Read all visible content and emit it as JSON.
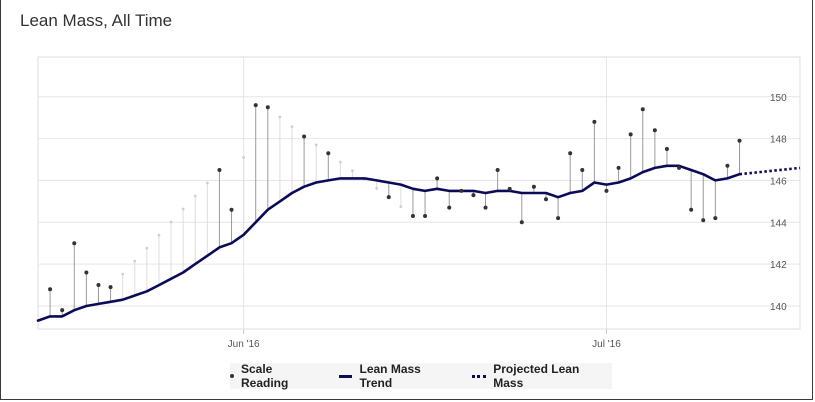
{
  "title": "Lean Mass, All Time",
  "chart_data": {
    "type": "line",
    "title": "Lean Mass, All Time",
    "xlabel": "",
    "ylabel": "",
    "x_domain": [
      -17,
      46
    ],
    "ylim": [
      138.9,
      151.9
    ],
    "y_ticks": [
      140,
      142,
      144,
      146,
      148,
      150
    ],
    "x_ticks": [
      {
        "x": 0,
        "label": "Jun '16"
      },
      {
        "x": 30,
        "label": "Jul '16"
      }
    ],
    "grid": true,
    "legend": "bottom-center",
    "series": [
      {
        "name": "Scale Reading",
        "kind": "scatter",
        "points": [
          {
            "x": -16,
            "y": 140.8
          },
          {
            "x": -15,
            "y": 139.8
          },
          {
            "x": -14,
            "y": 143.0
          },
          {
            "x": -13,
            "y": 141.6
          },
          {
            "x": -12,
            "y": 141.0
          },
          {
            "x": -11,
            "y": 140.9
          },
          {
            "x": -2,
            "y": 146.5
          },
          {
            "x": -1,
            "y": 144.6
          },
          {
            "x": 1,
            "y": 149.6
          },
          {
            "x": 2,
            "y": 149.5
          },
          {
            "x": 5,
            "y": 148.1
          },
          {
            "x": 7,
            "y": 147.3
          },
          {
            "x": 12,
            "y": 145.2
          },
          {
            "x": 14,
            "y": 144.3
          },
          {
            "x": 15,
            "y": 144.3
          },
          {
            "x": 16,
            "y": 146.1
          },
          {
            "x": 17,
            "y": 144.7
          },
          {
            "x": 18,
            "y": 145.5
          },
          {
            "x": 19,
            "y": 145.3
          },
          {
            "x": 20,
            "y": 144.7
          },
          {
            "x": 21,
            "y": 146.5
          },
          {
            "x": 22,
            "y": 145.6
          },
          {
            "x": 23,
            "y": 144.0
          },
          {
            "x": 24,
            "y": 145.7
          },
          {
            "x": 25,
            "y": 145.1
          },
          {
            "x": 26,
            "y": 144.2
          },
          {
            "x": 27,
            "y": 147.3
          },
          {
            "x": 28,
            "y": 146.5
          },
          {
            "x": 29,
            "y": 148.8
          },
          {
            "x": 30,
            "y": 145.5
          },
          {
            "x": 31,
            "y": 146.6
          },
          {
            "x": 32,
            "y": 148.2
          },
          {
            "x": 33,
            "y": 149.4
          },
          {
            "x": 34,
            "y": 148.4
          },
          {
            "x": 35,
            "y": 147.5
          },
          {
            "x": 36,
            "y": 146.6
          },
          {
            "x": 37,
            "y": 144.6
          },
          {
            "x": 38,
            "y": 144.1
          },
          {
            "x": 39,
            "y": 144.2
          },
          {
            "x": 40,
            "y": 146.7
          },
          {
            "x": 41,
            "y": 147.9
          }
        ]
      },
      {
        "name": "Lean Mass Trend",
        "kind": "line",
        "points": [
          {
            "x": -17,
            "y": 139.3
          },
          {
            "x": -16,
            "y": 139.5
          },
          {
            "x": -15,
            "y": 139.5
          },
          {
            "x": -14,
            "y": 139.8
          },
          {
            "x": -13,
            "y": 140.0
          },
          {
            "x": -12,
            "y": 140.1
          },
          {
            "x": -11,
            "y": 140.2
          },
          {
            "x": -10,
            "y": 140.3
          },
          {
            "x": -9,
            "y": 140.5
          },
          {
            "x": -8,
            "y": 140.7
          },
          {
            "x": -7,
            "y": 141.0
          },
          {
            "x": -6,
            "y": 141.3
          },
          {
            "x": -5,
            "y": 141.6
          },
          {
            "x": -4,
            "y": 142.0
          },
          {
            "x": -3,
            "y": 142.4
          },
          {
            "x": -2,
            "y": 142.8
          },
          {
            "x": -1,
            "y": 143.0
          },
          {
            "x": 0,
            "y": 143.4
          },
          {
            "x": 1,
            "y": 144.0
          },
          {
            "x": 2,
            "y": 144.6
          },
          {
            "x": 3,
            "y": 145.0
          },
          {
            "x": 4,
            "y": 145.4
          },
          {
            "x": 5,
            "y": 145.7
          },
          {
            "x": 6,
            "y": 145.9
          },
          {
            "x": 7,
            "y": 146.0
          },
          {
            "x": 8,
            "y": 146.1
          },
          {
            "x": 9,
            "y": 146.1
          },
          {
            "x": 10,
            "y": 146.1
          },
          {
            "x": 11,
            "y": 146.0
          },
          {
            "x": 12,
            "y": 145.9
          },
          {
            "x": 13,
            "y": 145.8
          },
          {
            "x": 14,
            "y": 145.6
          },
          {
            "x": 15,
            "y": 145.5
          },
          {
            "x": 16,
            "y": 145.6
          },
          {
            "x": 17,
            "y": 145.5
          },
          {
            "x": 18,
            "y": 145.5
          },
          {
            "x": 19,
            "y": 145.5
          },
          {
            "x": 20,
            "y": 145.4
          },
          {
            "x": 21,
            "y": 145.5
          },
          {
            "x": 22,
            "y": 145.5
          },
          {
            "x": 23,
            "y": 145.4
          },
          {
            "x": 24,
            "y": 145.4
          },
          {
            "x": 25,
            "y": 145.4
          },
          {
            "x": 26,
            "y": 145.2
          },
          {
            "x": 27,
            "y": 145.4
          },
          {
            "x": 28,
            "y": 145.5
          },
          {
            "x": 29,
            "y": 145.9
          },
          {
            "x": 30,
            "y": 145.8
          },
          {
            "x": 31,
            "y": 145.9
          },
          {
            "x": 32,
            "y": 146.1
          },
          {
            "x": 33,
            "y": 146.4
          },
          {
            "x": 34,
            "y": 146.6
          },
          {
            "x": 35,
            "y": 146.7
          },
          {
            "x": 36,
            "y": 146.7
          },
          {
            "x": 37,
            "y": 146.5
          },
          {
            "x": 38,
            "y": 146.3
          },
          {
            "x": 39,
            "y": 146.0
          },
          {
            "x": 40,
            "y": 146.1
          },
          {
            "x": 41,
            "y": 146.3
          }
        ]
      },
      {
        "name": "Projected Lean Mass",
        "kind": "dotted-line",
        "points": [
          {
            "x": 41,
            "y": 146.3
          },
          {
            "x": 46,
            "y": 146.6
          }
        ]
      }
    ],
    "colors": {
      "trend": "#0b0b5a",
      "marker": "#333333",
      "stem": "#9a9a9a",
      "stem_faded": "#dedede",
      "grid": "#e6e6e6"
    }
  },
  "legend": {
    "scale_reading": "Scale Reading",
    "trend": "Lean Mass Trend",
    "projected": "Projected Lean Mass"
  }
}
